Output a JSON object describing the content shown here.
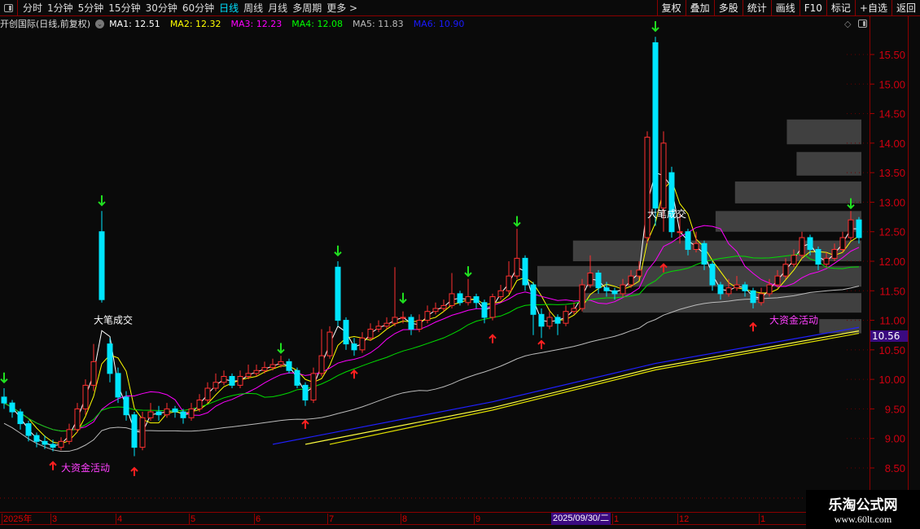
{
  "toolbar": {
    "periods": [
      "分时",
      "1分钟",
      "5分钟",
      "15分钟",
      "30分钟",
      "60分钟",
      "日线",
      "周线",
      "月线",
      "多周期",
      "更多 >"
    ],
    "active": "日线",
    "right_buttons": [
      "复权",
      "叠加",
      "多股",
      "统计",
      "画线",
      "F10",
      "标记",
      "+自选",
      "返回"
    ]
  },
  "info": {
    "title": "开创国际(日线,前复权)",
    "ma": [
      {
        "label": "MA1: 12.51",
        "color": "#ffffff"
      },
      {
        "label": "MA2: 12.32",
        "color": "#ffff00"
      },
      {
        "label": "MA3: 12.23",
        "color": "#ff00ff"
      },
      {
        "label": "MA4: 12.08",
        "color": "#00ff00"
      },
      {
        "label": "MA5: 11.83",
        "color": "#bbbbbb"
      },
      {
        "label": "MA6: 10.90",
        "color": "#1a1aff"
      }
    ]
  },
  "price_tag": "10.56",
  "cursor_date": "2025/09/30/二",
  "date_ticks": [
    {
      "label": "2025年",
      "bar": 0
    },
    {
      "label": "3",
      "bar": 6
    },
    {
      "label": "4",
      "bar": 14
    },
    {
      "label": "5",
      "bar": 23
    },
    {
      "label": "6",
      "bar": 31
    },
    {
      "label": "7",
      "bar": 40
    },
    {
      "label": "8",
      "bar": 49
    },
    {
      "label": "9",
      "bar": 58
    },
    {
      "label": "1",
      "bar": 75
    },
    {
      "label": "12",
      "bar": 83
    },
    {
      "label": "1",
      "bar": 93
    }
  ],
  "cursor_bar": 67,
  "watermark": {
    "name": "乐淘公式网",
    "url": "www.60lt.com"
  },
  "chart_data": {
    "type": "candlestick",
    "ylim": [
      8.3,
      15.9
    ],
    "yticks": [
      "15.50",
      "15.00",
      "14.50",
      "14.00",
      "13.50",
      "13.00",
      "12.50",
      "12.00",
      "11.50",
      "11.00",
      "10.50",
      "10.00",
      "9.50",
      "9.00",
      "8.50"
    ],
    "colors": {
      "up": "#ff3030",
      "down": "#00e5ff"
    },
    "ohlc": [
      [
        9.7,
        9.85,
        9.5,
        9.6
      ],
      [
        9.6,
        9.65,
        9.35,
        9.45
      ],
      [
        9.45,
        9.5,
        9.15,
        9.25
      ],
      [
        9.25,
        9.3,
        8.95,
        9.05
      ],
      [
        9.05,
        9.1,
        8.85,
        8.95
      ],
      [
        8.95,
        9.05,
        8.82,
        8.9
      ],
      [
        8.9,
        8.98,
        8.78,
        8.85
      ],
      [
        8.85,
        9.02,
        8.8,
        8.95
      ],
      [
        8.95,
        9.25,
        8.9,
        9.15
      ],
      [
        9.15,
        9.6,
        9.1,
        9.5
      ],
      [
        9.5,
        10.0,
        9.4,
        9.9
      ],
      [
        9.9,
        10.6,
        9.8,
        10.3
      ],
      [
        12.5,
        12.85,
        11.3,
        11.35
      ],
      [
        10.6,
        10.7,
        9.95,
        10.1
      ],
      [
        10.1,
        10.2,
        9.6,
        9.7
      ],
      [
        9.7,
        9.8,
        9.3,
        9.4
      ],
      [
        9.4,
        9.45,
        8.7,
        8.85
      ],
      [
        8.85,
        9.45,
        8.8,
        9.35
      ],
      [
        9.35,
        9.6,
        9.3,
        9.45
      ],
      [
        9.45,
        9.55,
        9.3,
        9.4
      ],
      [
        9.4,
        9.6,
        9.35,
        9.5
      ],
      [
        9.5,
        9.55,
        9.35,
        9.45
      ],
      [
        9.45,
        9.5,
        9.25,
        9.35
      ],
      [
        9.35,
        9.6,
        9.3,
        9.5
      ],
      [
        9.5,
        9.75,
        9.45,
        9.65
      ],
      [
        9.65,
        9.95,
        9.6,
        9.85
      ],
      [
        9.85,
        10.1,
        9.8,
        9.95
      ],
      [
        9.95,
        10.15,
        9.9,
        10.05
      ],
      [
        10.05,
        10.1,
        9.85,
        9.9
      ],
      [
        9.9,
        10.15,
        9.85,
        10.05
      ],
      [
        10.05,
        10.25,
        10.0,
        10.1
      ],
      [
        10.1,
        10.25,
        10.05,
        10.15
      ],
      [
        10.15,
        10.3,
        10.1,
        10.2
      ],
      [
        10.2,
        10.35,
        10.15,
        10.25
      ],
      [
        10.25,
        10.4,
        10.2,
        10.3
      ],
      [
        10.3,
        10.35,
        10.1,
        10.15
      ],
      [
        10.15,
        10.2,
        9.85,
        9.9
      ],
      [
        9.9,
        9.95,
        9.55,
        9.65
      ],
      [
        9.65,
        10.2,
        9.6,
        10.1
      ],
      [
        10.1,
        10.85,
        10.05,
        10.4
      ],
      [
        10.4,
        10.9,
        10.35,
        10.8
      ],
      [
        11.9,
        12.0,
        10.9,
        11.0
      ],
      [
        11.0,
        11.05,
        10.5,
        10.6
      ],
      [
        10.6,
        10.7,
        10.4,
        10.5
      ],
      [
        10.5,
        10.8,
        10.45,
        10.7
      ],
      [
        10.7,
        10.95,
        10.65,
        10.85
      ],
      [
        10.85,
        11.0,
        10.8,
        10.9
      ],
      [
        10.9,
        11.05,
        10.85,
        10.95
      ],
      [
        10.95,
        11.9,
        10.9,
        11.05
      ],
      [
        11.05,
        11.15,
        10.95,
        11.05
      ],
      [
        11.05,
        11.1,
        10.75,
        10.85
      ],
      [
        10.85,
        11.1,
        10.8,
        11.0
      ],
      [
        11.0,
        11.25,
        10.95,
        11.15
      ],
      [
        11.15,
        11.3,
        11.1,
        11.2
      ],
      [
        11.2,
        11.35,
        11.15,
        11.25
      ],
      [
        11.25,
        11.8,
        11.2,
        11.45
      ],
      [
        11.45,
        11.5,
        11.25,
        11.3
      ],
      [
        11.3,
        11.7,
        11.25,
        11.4
      ],
      [
        11.4,
        11.45,
        11.2,
        11.3
      ],
      [
        11.3,
        11.35,
        10.95,
        11.05
      ],
      [
        11.05,
        11.45,
        11.0,
        11.4
      ],
      [
        11.4,
        11.6,
        11.35,
        11.5
      ],
      [
        11.5,
        12.0,
        11.45,
        11.75
      ],
      [
        11.75,
        12.55,
        11.7,
        12.05
      ],
      [
        12.05,
        12.1,
        11.5,
        11.6
      ],
      [
        11.6,
        11.65,
        10.75,
        11.1
      ],
      [
        11.1,
        11.2,
        10.7,
        10.9
      ],
      [
        10.9,
        11.15,
        10.85,
        11.05
      ],
      [
        11.05,
        11.1,
        10.75,
        10.95
      ],
      [
        10.95,
        11.25,
        10.9,
        11.15
      ],
      [
        11.15,
        11.3,
        11.1,
        11.2
      ],
      [
        11.2,
        11.7,
        11.15,
        11.6
      ],
      [
        11.6,
        12.1,
        11.55,
        11.8
      ],
      [
        11.8,
        11.85,
        11.45,
        11.55
      ],
      [
        11.55,
        11.65,
        11.4,
        11.5
      ],
      [
        11.5,
        11.55,
        11.35,
        11.45
      ],
      [
        11.45,
        11.7,
        11.4,
        11.6
      ],
      [
        11.6,
        11.85,
        11.55,
        11.75
      ],
      [
        11.75,
        12.0,
        11.7,
        11.85
      ],
      [
        12.4,
        14.2,
        12.3,
        14.1
      ],
      [
        15.7,
        15.8,
        12.6,
        12.9
      ],
      [
        12.9,
        14.2,
        12.5,
        14.0
      ],
      [
        13.5,
        13.6,
        12.4,
        12.5
      ],
      [
        12.5,
        12.8,
        12.3,
        12.5
      ],
      [
        12.5,
        12.55,
        12.1,
        12.2
      ],
      [
        12.2,
        12.5,
        12.15,
        12.3
      ],
      [
        12.3,
        12.35,
        11.85,
        11.95
      ],
      [
        11.95,
        12.0,
        11.5,
        11.6
      ],
      [
        11.6,
        11.65,
        11.35,
        11.45
      ],
      [
        11.45,
        11.7,
        11.4,
        11.55
      ],
      [
        11.55,
        11.75,
        11.5,
        11.6
      ],
      [
        11.6,
        11.65,
        11.4,
        11.5
      ],
      [
        11.5,
        11.55,
        11.2,
        11.3
      ],
      [
        11.3,
        11.55,
        11.25,
        11.45
      ],
      [
        11.45,
        11.7,
        11.4,
        11.6
      ],
      [
        11.6,
        11.85,
        11.55,
        11.75
      ],
      [
        11.75,
        12.05,
        11.7,
        11.95
      ],
      [
        11.95,
        12.2,
        11.9,
        12.1
      ],
      [
        12.1,
        12.5,
        12.05,
        12.4
      ],
      [
        12.4,
        12.45,
        12.1,
        12.2
      ],
      [
        12.2,
        12.25,
        11.85,
        11.95
      ],
      [
        11.95,
        12.15,
        11.9,
        12.05
      ],
      [
        12.05,
        12.3,
        12.0,
        12.2
      ],
      [
        12.2,
        12.5,
        12.15,
        12.4
      ],
      [
        12.4,
        12.85,
        12.35,
        12.7
      ],
      [
        12.7,
        12.75,
        12.3,
        12.4
      ]
    ],
    "long_lines": [
      {
        "color": "#2020ff",
        "points": [
          [
            33,
            8.9
          ],
          [
            60,
            9.62
          ],
          [
            80,
            10.27
          ],
          [
            105,
            10.88
          ]
        ]
      },
      {
        "color": "#ffff40",
        "points": [
          [
            37,
            8.9
          ],
          [
            60,
            9.52
          ],
          [
            80,
            10.2
          ],
          [
            105,
            10.82
          ]
        ]
      },
      {
        "color": "#e0e000",
        "points": [
          [
            40,
            8.9
          ],
          [
            60,
            9.48
          ],
          [
            80,
            10.16
          ],
          [
            105,
            10.78
          ]
        ]
      }
    ],
    "zones": [
      {
        "top": 14.4,
        "bottom": 13.98,
        "relative_volume": 0.23
      },
      {
        "top": 13.85,
        "bottom": 13.45,
        "relative_volume": 0.2
      },
      {
        "top": 13.35,
        "bottom": 12.98,
        "relative_volume": 0.39
      },
      {
        "top": 12.85,
        "bottom": 12.5,
        "relative_volume": 0.45
      },
      {
        "top": 12.35,
        "bottom": 12.0,
        "relative_volume": 0.89
      },
      {
        "top": 11.92,
        "bottom": 11.57,
        "relative_volume": 1.0
      },
      {
        "top": 11.46,
        "bottom": 11.13,
        "relative_volume": 0.86
      },
      {
        "top": 11.02,
        "bottom": 10.78,
        "relative_volume": 0.13
      }
    ],
    "sell_signals": [
      [
        0,
        9.95
      ],
      [
        12,
        12.95
      ],
      [
        34,
        10.45
      ],
      [
        41,
        12.1
      ],
      [
        49,
        11.3
      ],
      [
        57,
        11.75
      ],
      [
        63,
        12.6
      ],
      [
        80,
        15.9
      ],
      [
        104,
        12.9
      ]
    ],
    "buy_signals": [
      [
        6,
        8.6
      ],
      [
        16,
        8.5
      ],
      [
        37,
        9.3
      ],
      [
        43,
        10.15
      ],
      [
        60,
        10.75
      ],
      [
        66,
        10.65
      ],
      [
        81,
        11.95
      ],
      [
        92,
        10.95
      ]
    ],
    "annotations": [
      {
        "text": "大笔成交",
        "bar": 12,
        "price": 11.0,
        "color": "#ffffff"
      },
      {
        "text": "大笔成交",
        "bar": 80,
        "price": 12.8,
        "color": "#ffffff"
      },
      {
        "text": "大资金活动",
        "bar": 8,
        "price": 8.5,
        "color": "#ff40ff"
      },
      {
        "text": "大资金活动",
        "bar": 95,
        "price": 11.0,
        "color": "#ff40ff"
      }
    ]
  }
}
